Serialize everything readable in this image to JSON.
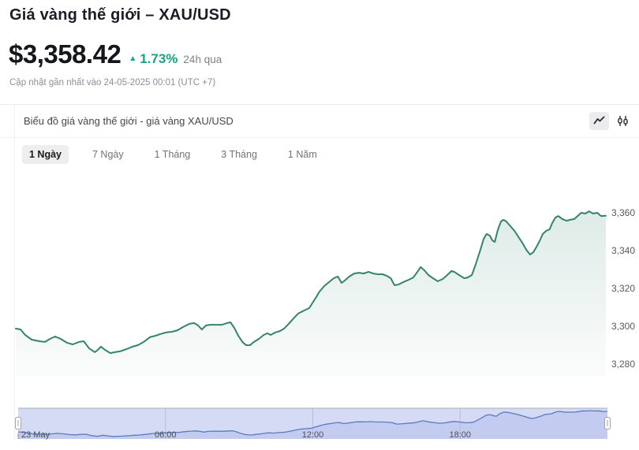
{
  "header": {
    "title": "Giá vàng thế giới – XAU/USD",
    "price": "$3,358.42",
    "change_icon": "▲",
    "change_pct": "1.73%",
    "change_period": "24h qua",
    "updated": "Cập nhật gần nhất vào 24-05-2025 00:01 (UTC +7)",
    "accent_green": "#18A287"
  },
  "chart_section": {
    "subtitle": "Biểu đồ giá vàng thế giới - giá vàng XAU/USD",
    "icons": [
      "line-chart-icon",
      "candlestick-icon"
    ]
  },
  "tabs": [
    {
      "id": "1d",
      "label": "1 Ngày",
      "active": true
    },
    {
      "id": "7d",
      "label": "7 Ngày",
      "active": false
    },
    {
      "id": "1m",
      "label": "1 Tháng",
      "active": false
    },
    {
      "id": "3m",
      "label": "3 Tháng",
      "active": false
    },
    {
      "id": "1y",
      "label": "1 Năm",
      "active": false
    }
  ],
  "chart_data": {
    "type": "line",
    "title": "Biểu đồ giá vàng thế giới - giá vàng XAU/USD",
    "x_unit": "minutes since 23 May 00:00 (UTC+7)",
    "x_range_minutes": [
      0,
      1440
    ],
    "ylim": [
      3272,
      3368
    ],
    "grid": false,
    "yticks": [
      {
        "v": 3360,
        "label": "3,360"
      },
      {
        "v": 3340,
        "label": "3,340"
      },
      {
        "v": 3320,
        "label": "3,320"
      },
      {
        "v": 3300,
        "label": "3,300"
      },
      {
        "v": 3280,
        "label": "3,280"
      }
    ],
    "series": [
      {
        "name": "XAU/USD",
        "color": "#35836E",
        "fill_top": "rgba(53,131,110,0.16)",
        "fill_bottom": "rgba(53,131,110,0.02)",
        "points": [
          [
            0,
            3298.8
          ],
          [
            12,
            3298.3
          ],
          [
            23,
            3295.4
          ],
          [
            39,
            3292.9
          ],
          [
            58,
            3292.1
          ],
          [
            71,
            3291.7
          ],
          [
            83,
            3293.3
          ],
          [
            96,
            3294.6
          ],
          [
            110,
            3293.3
          ],
          [
            125,
            3291.3
          ],
          [
            139,
            3290.4
          ],
          [
            154,
            3291.7
          ],
          [
            166,
            3292.1
          ],
          [
            179,
            3288.3
          ],
          [
            193,
            3286.3
          ],
          [
            200,
            3287.5
          ],
          [
            208,
            3289.2
          ],
          [
            218,
            3287.5
          ],
          [
            231,
            3285.8
          ],
          [
            241,
            3286.3
          ],
          [
            254,
            3286.7
          ],
          [
            270,
            3287.9
          ],
          [
            285,
            3289.2
          ],
          [
            298,
            3290
          ],
          [
            312,
            3291.7
          ],
          [
            327,
            3294.2
          ],
          [
            341,
            3295
          ],
          [
            352,
            3295.8
          ],
          [
            366,
            3296.7
          ],
          [
            381,
            3297.1
          ],
          [
            395,
            3297.9
          ],
          [
            408,
            3299.6
          ],
          [
            424,
            3301.3
          ],
          [
            435,
            3301.7
          ],
          [
            445,
            3300.4
          ],
          [
            454,
            3298.3
          ],
          [
            464,
            3300.4
          ],
          [
            474,
            3300.8
          ],
          [
            487,
            3300.8
          ],
          [
            503,
            3300.8
          ],
          [
            516,
            3301.7
          ],
          [
            524,
            3302.1
          ],
          [
            533,
            3299.2
          ],
          [
            543,
            3295
          ],
          [
            553,
            3291.7
          ],
          [
            562,
            3290
          ],
          [
            572,
            3290
          ],
          [
            581,
            3291.7
          ],
          [
            593,
            3293.3
          ],
          [
            605,
            3295.4
          ],
          [
            614,
            3296.3
          ],
          [
            622,
            3295.4
          ],
          [
            633,
            3296.7
          ],
          [
            645,
            3297.5
          ],
          [
            655,
            3298.8
          ],
          [
            666,
            3301.3
          ],
          [
            678,
            3304.2
          ],
          [
            689,
            3306.7
          ],
          [
            703,
            3308.3
          ],
          [
            716,
            3309.6
          ],
          [
            732,
            3315
          ],
          [
            741,
            3318.3
          ],
          [
            753,
            3321.3
          ],
          [
            764,
            3323.3
          ],
          [
            776,
            3325.4
          ],
          [
            786,
            3326.3
          ],
          [
            795,
            3322.9
          ],
          [
            803,
            3324.2
          ],
          [
            814,
            3326.3
          ],
          [
            826,
            3327.9
          ],
          [
            838,
            3328.3
          ],
          [
            849,
            3327.9
          ],
          [
            861,
            3328.8
          ],
          [
            872,
            3327.9
          ],
          [
            884,
            3327.5
          ],
          [
            895,
            3327.5
          ],
          [
            905,
            3326.7
          ],
          [
            915,
            3325.4
          ],
          [
            924,
            3321.7
          ],
          [
            934,
            3322.1
          ],
          [
            945,
            3323.3
          ],
          [
            959,
            3324.6
          ],
          [
            970,
            3325.8
          ],
          [
            980,
            3328.8
          ],
          [
            988,
            3331.3
          ],
          [
            997,
            3329.6
          ],
          [
            1007,
            3327.1
          ],
          [
            1018,
            3325.4
          ],
          [
            1030,
            3323.8
          ],
          [
            1042,
            3325
          ],
          [
            1053,
            3327.1
          ],
          [
            1063,
            3329.2
          ],
          [
            1070,
            3328.8
          ],
          [
            1082,
            3327.1
          ],
          [
            1094,
            3325.4
          ],
          [
            1103,
            3325.8
          ],
          [
            1113,
            3327.1
          ],
          [
            1122,
            3332.5
          ],
          [
            1132,
            3339.2
          ],
          [
            1142,
            3346.3
          ],
          [
            1149,
            3348.8
          ],
          [
            1157,
            3347.9
          ],
          [
            1163,
            3345.4
          ],
          [
            1169,
            3344.6
          ],
          [
            1176,
            3350.8
          ],
          [
            1184,
            3355.4
          ],
          [
            1190,
            3356.3
          ],
          [
            1197,
            3355.4
          ],
          [
            1207,
            3352.9
          ],
          [
            1217,
            3350.4
          ],
          [
            1226,
            3347.5
          ],
          [
            1236,
            3344.2
          ],
          [
            1246,
            3340.4
          ],
          [
            1255,
            3337.9
          ],
          [
            1263,
            3339.2
          ],
          [
            1271,
            3342.1
          ],
          [
            1278,
            3345
          ],
          [
            1286,
            3348.8
          ],
          [
            1294,
            3350.4
          ],
          [
            1303,
            3351.3
          ],
          [
            1309,
            3354.6
          ],
          [
            1317,
            3357.5
          ],
          [
            1324,
            3358.3
          ],
          [
            1334,
            3356.7
          ],
          [
            1344,
            3355.8
          ],
          [
            1353,
            3356.3
          ],
          [
            1363,
            3356.7
          ],
          [
            1371,
            3358.3
          ],
          [
            1380,
            3360
          ],
          [
            1390,
            3359.6
          ],
          [
            1399,
            3360.8
          ],
          [
            1409,
            3359.6
          ],
          [
            1419,
            3360
          ],
          [
            1428,
            3358.3
          ],
          [
            1440,
            3358.4
          ]
        ]
      }
    ],
    "legend": "none",
    "yaxis_side": "right"
  },
  "navigator": {
    "band_color": "#d5daf5",
    "area_color": "#c3ccf0",
    "line_color": "#5d79bf",
    "grid_color": "#b5bce6",
    "border_color": "#a8acb6",
    "label_color": "#4c5056",
    "x_labels": [
      {
        "t": 0,
        "label": "23 May",
        "align": "start"
      },
      {
        "t": 360,
        "label": "06:00",
        "align": "middle"
      },
      {
        "t": 720,
        "label": "12:00",
        "align": "middle"
      },
      {
        "t": 1080,
        "label": "18:00",
        "align": "middle"
      }
    ]
  }
}
